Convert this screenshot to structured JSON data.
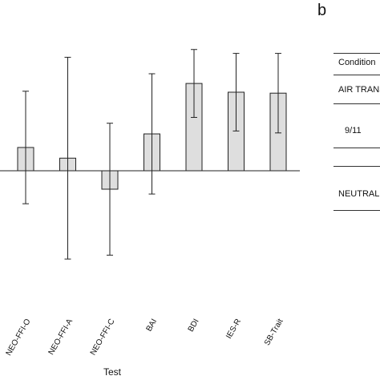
{
  "chart_data": {
    "type": "bar",
    "xlabel": "Test",
    "ylabel": "",
    "ylim": [
      -1.2,
      1.2
    ],
    "categories": [
      "NEO-FFI-O",
      "NEO-FFI-A",
      "NEO-FFI-C",
      "BAI",
      "BDI",
      "IES-R",
      "SB-Trait"
    ],
    "values": [
      0.24,
      0.13,
      -0.19,
      0.38,
      0.9,
      0.81,
      0.8
    ],
    "errors": [
      0.58,
      1.04,
      0.68,
      0.62,
      0.35,
      0.4,
      0.41
    ],
    "colors": {
      "bar_fill": "#dedede",
      "bar_stroke": "#222222"
    }
  },
  "panel_b": {
    "letter": "b",
    "header": "Condition",
    "rows": [
      "AIR TRANSA",
      "9/11",
      "NEUTRAL"
    ]
  }
}
